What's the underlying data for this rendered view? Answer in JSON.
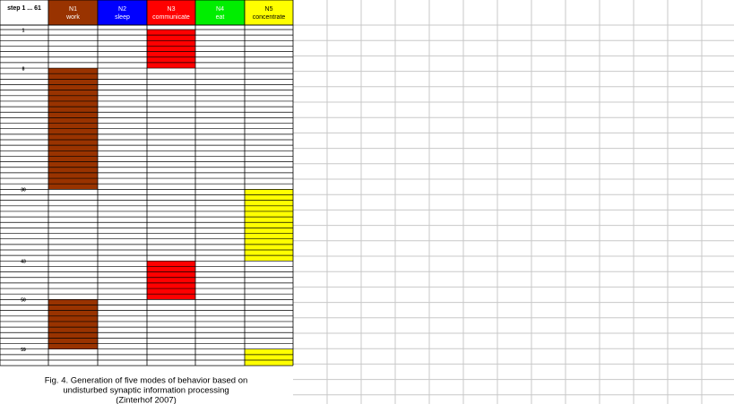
{
  "columns": [
    {
      "title": "step 1 ... 61"
    },
    {
      "code": "N1",
      "label": "work",
      "color": "#993300",
      "text_color": "#ffffff"
    },
    {
      "code": "N2",
      "label": "sleep",
      "color": "#0000ff",
      "text_color": "#ffffff"
    },
    {
      "code": "N3",
      "label": "communicate",
      "color": "#ff0000",
      "text_color": "#ffffff"
    },
    {
      "code": "N4",
      "label": "eat",
      "color": "#00ee00",
      "text_color": "#ffffff"
    },
    {
      "code": "N5",
      "label": "concentrate",
      "color": "#ffff00",
      "text_color": "#000000"
    }
  ],
  "steps": 61,
  "step_markers": [
    1,
    8,
    30,
    43,
    50,
    59
  ],
  "segment_columns": [
    3,
    1,
    5,
    3,
    1,
    5
  ],
  "caption": [
    "Fig. 4. Generation of five modes of behavior based on",
    "undisturbed synaptic information processing",
    "(Zinterhof 2007)"
  ]
}
